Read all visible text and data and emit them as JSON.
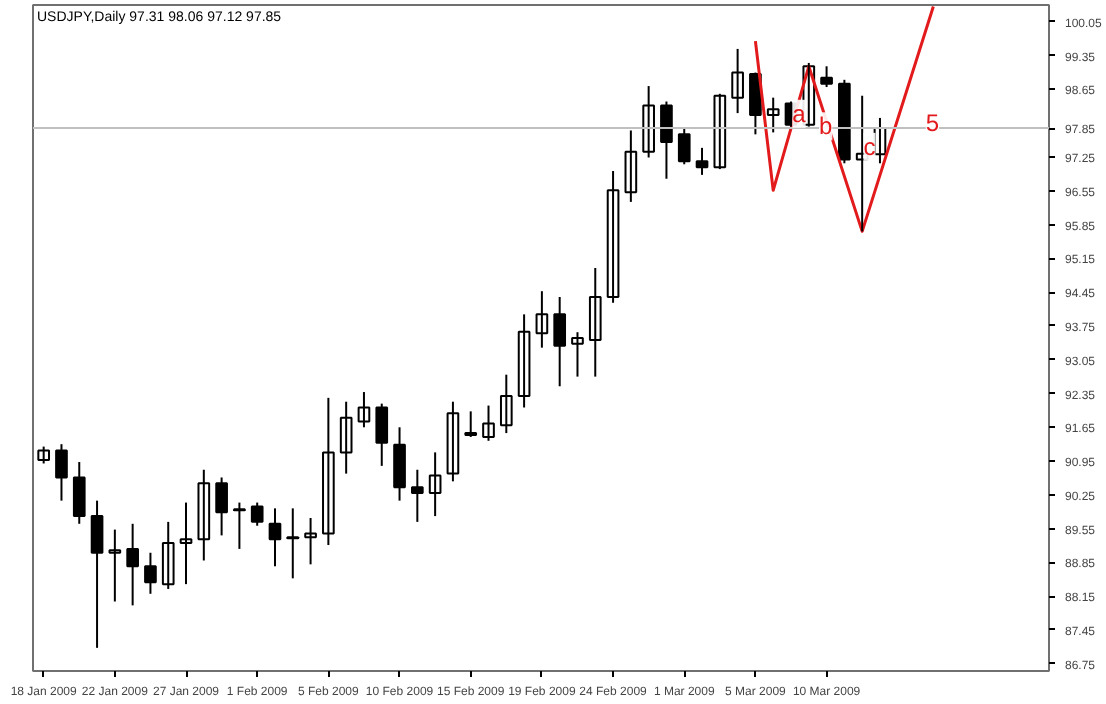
{
  "chart_data": {
    "type": "candlestick",
    "title": "USDJPY,Daily  97.31 98.06 97.12 97.85",
    "categories": [
      "18 Jan 2009",
      null,
      null,
      null,
      "22 Jan 2009",
      null,
      null,
      null,
      "27 Jan 2009",
      null,
      null,
      null,
      "1 Feb 2009",
      null,
      null,
      null,
      "5 Feb 2009",
      null,
      null,
      null,
      "10 Feb 2009",
      null,
      null,
      null,
      "15 Feb 2009",
      null,
      null,
      null,
      "19 Feb 2009",
      null,
      null,
      null,
      "24 Feb 2009",
      null,
      null,
      null,
      "1 Mar 2009",
      null,
      null,
      null,
      "5 Mar 2009",
      null,
      null,
      null,
      "10 Mar 2009",
      null,
      null,
      null,
      null,
      null,
      null,
      null,
      null,
      null,
      null,
      null,
      null
    ],
    "ohlc": [
      [
        90.97,
        91.25,
        90.9,
        91.17
      ],
      [
        91.17,
        91.3,
        90.13,
        90.61
      ],
      [
        90.61,
        90.93,
        89.65,
        89.81
      ],
      [
        89.81,
        90.13,
        87.08,
        89.05
      ],
      [
        89.05,
        89.53,
        88.04,
        89.1
      ],
      [
        89.13,
        89.65,
        87.96,
        88.77
      ],
      [
        88.77,
        89.05,
        88.2,
        88.44
      ],
      [
        88.4,
        89.69,
        88.3,
        89.25
      ],
      [
        89.25,
        90.09,
        88.4,
        89.33
      ],
      [
        89.33,
        90.77,
        88.89,
        90.49
      ],
      [
        90.49,
        90.61,
        89.41,
        89.89
      ],
      [
        89.95,
        90.09,
        89.13,
        89.93
      ],
      [
        90.01,
        90.09,
        89.61,
        89.69
      ],
      [
        89.65,
        89.97,
        88.77,
        89.33
      ],
      [
        89.37,
        89.97,
        88.52,
        89.35
      ],
      [
        89.37,
        89.77,
        88.81,
        89.45
      ],
      [
        89.45,
        92.26,
        89.21,
        91.13
      ],
      [
        91.13,
        92.18,
        90.69,
        91.85
      ],
      [
        91.77,
        92.38,
        91.65,
        92.06
      ],
      [
        92.06,
        92.14,
        90.85,
        91.33
      ],
      [
        91.29,
        91.65,
        90.13,
        90.41
      ],
      [
        90.41,
        90.77,
        89.69,
        90.29
      ],
      [
        90.29,
        91.13,
        89.81,
        90.65
      ],
      [
        90.69,
        92.18,
        90.53,
        91.94
      ],
      [
        91.53,
        91.98,
        91.45,
        91.49
      ],
      [
        91.45,
        92.1,
        91.37,
        91.73
      ],
      [
        91.69,
        92.74,
        91.53,
        92.3
      ],
      [
        92.3,
        93.99,
        92.06,
        93.63
      ],
      [
        93.6,
        94.47,
        93.3,
        93.99
      ],
      [
        93.99,
        94.35,
        92.5,
        93.34
      ],
      [
        93.38,
        93.62,
        92.7,
        93.5
      ],
      [
        93.46,
        94.95,
        92.7,
        94.35
      ],
      [
        94.35,
        96.96,
        94.23,
        96.56
      ],
      [
        96.52,
        97.8,
        96.32,
        97.36
      ],
      [
        97.36,
        98.72,
        97.24,
        98.32
      ],
      [
        98.32,
        98.4,
        96.8,
        97.56
      ],
      [
        97.72,
        97.84,
        97.1,
        97.16
      ],
      [
        97.16,
        97.44,
        96.88,
        97.04
      ],
      [
        97.04,
        98.56,
        97.0,
        98.52
      ],
      [
        98.48,
        99.49,
        98.16,
        99.0
      ],
      [
        98.97,
        99.0,
        97.72,
        98.12
      ],
      [
        98.12,
        98.48,
        97.76,
        98.24
      ],
      [
        98.36,
        98.4,
        97.88,
        97.92
      ],
      [
        97.92,
        99.2,
        97.88,
        99.13
      ],
      [
        98.89,
        99.13,
        98.7,
        98.77
      ],
      [
        98.77,
        98.85,
        97.12,
        97.2
      ],
      [
        97.2,
        98.52,
        95.71,
        97.32
      ],
      [
        97.31,
        98.06,
        97.12,
        97.85
      ],
      null,
      null,
      null,
      null,
      null,
      null,
      null,
      null,
      null
    ],
    "color": "#000000",
    "series": [
      {
        "type": "line",
        "color": "#e31a1c",
        "values": [
          null,
          null,
          null,
          null,
          null,
          null,
          null,
          null,
          null,
          null,
          null,
          null,
          null,
          null,
          null,
          null,
          null,
          null,
          null,
          null,
          null,
          null,
          null,
          null,
          null,
          null,
          null,
          null,
          null,
          null,
          null,
          null,
          null,
          null,
          null,
          null,
          null,
          null,
          null,
          null,
          99.65,
          96.56,
          null,
          99.13,
          null,
          null,
          95.71,
          null,
          null,
          null,
          100.37,
          null,
          null,
          null,
          null,
          null,
          null
        ]
      }
    ],
    "annotations": [
      "a",
      "b",
      "c",
      "5"
    ],
    "ylim": [
      86.6,
      100.4
    ],
    "yticks": [
      86.75,
      87.45,
      88.15,
      88.85,
      89.55,
      90.25,
      90.95,
      91.65,
      92.35,
      93.05,
      93.75,
      94.45,
      95.15,
      95.85,
      96.55,
      97.25,
      98.65,
      99.35,
      100.05
    ],
    "ref_lines": [
      {
        "axis": "y",
        "value": 97.85,
        "label": "97.85",
        "color": "#c0c0c0"
      }
    ],
    "grid": false
  }
}
